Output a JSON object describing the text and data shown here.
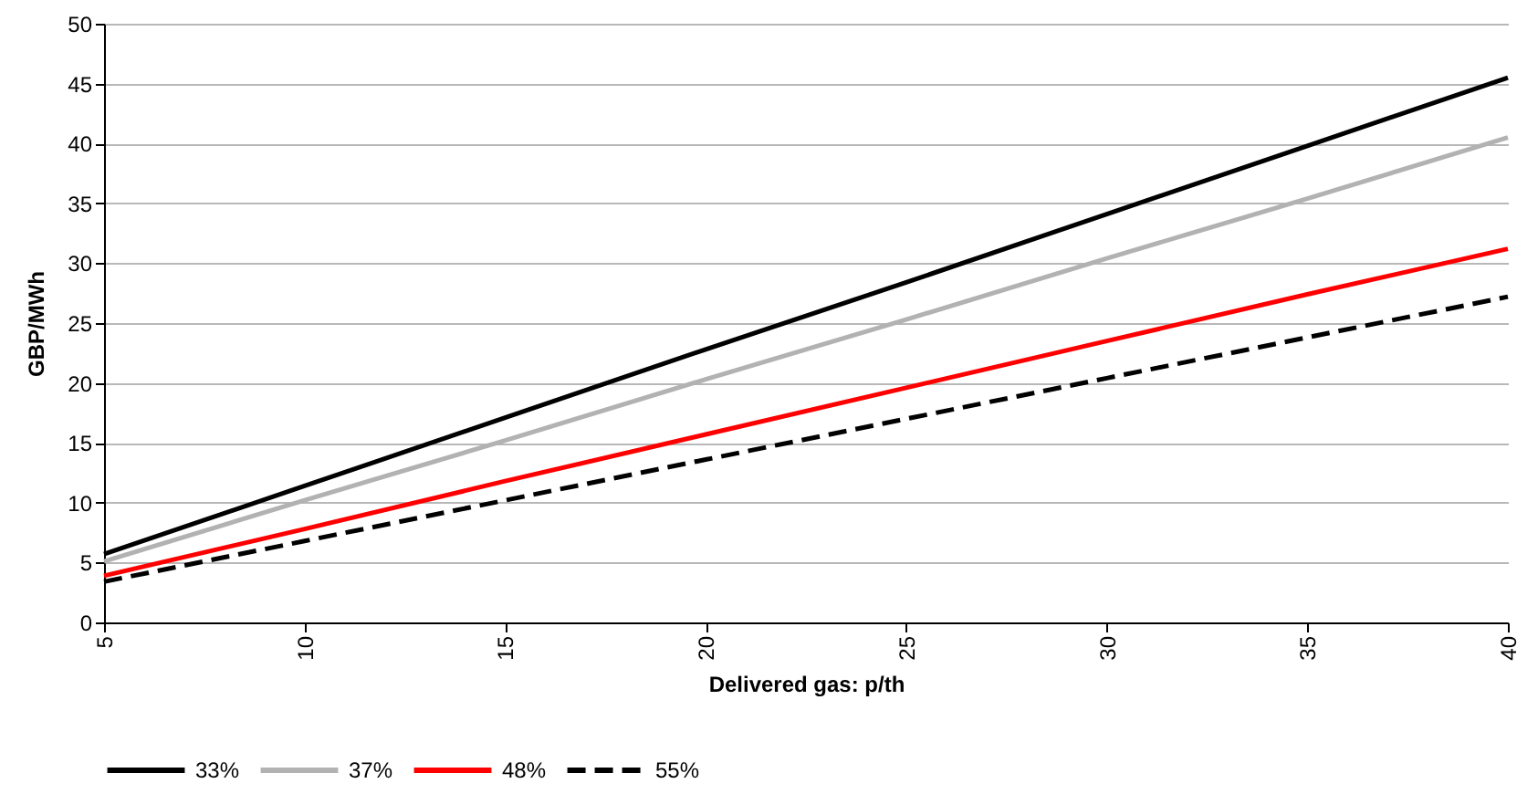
{
  "chart_data": {
    "type": "line",
    "xlabel": "Delivered gas: p/th",
    "ylabel": "GBP/MWh",
    "x": [
      5,
      10,
      15,
      20,
      25,
      30,
      35,
      40
    ],
    "series": [
      {
        "name": "33%",
        "color": "#000000",
        "line_style": "solid",
        "values": [
          5.7,
          11.4,
          17.1,
          22.8,
          28.4,
          34.1,
          39.8,
          45.5
        ]
      },
      {
        "name": "37%",
        "color": "#b2b2b2",
        "line_style": "solid",
        "values": [
          5.1,
          10.2,
          15.2,
          20.3,
          25.3,
          30.4,
          35.4,
          40.5
        ]
      },
      {
        "name": "48%",
        "color": "#ff0000",
        "line_style": "solid",
        "values": [
          3.9,
          7.8,
          11.8,
          15.7,
          19.6,
          23.5,
          27.4,
          31.2
        ]
      },
      {
        "name": "55%",
        "color": "#000000",
        "line_style": "dashed",
        "values": [
          3.4,
          6.8,
          10.2,
          13.6,
          17.0,
          20.4,
          23.8,
          27.2
        ]
      }
    ],
    "xlim": [
      5,
      40
    ],
    "xticks": [
      5,
      10,
      15,
      20,
      25,
      30,
      35,
      40
    ],
    "ylim": [
      0,
      50
    ],
    "yticks": [
      0,
      5,
      10,
      15,
      20,
      25,
      30,
      35,
      40,
      45,
      50
    ],
    "grid": "y",
    "legend": "bottom",
    "marker": "none"
  }
}
